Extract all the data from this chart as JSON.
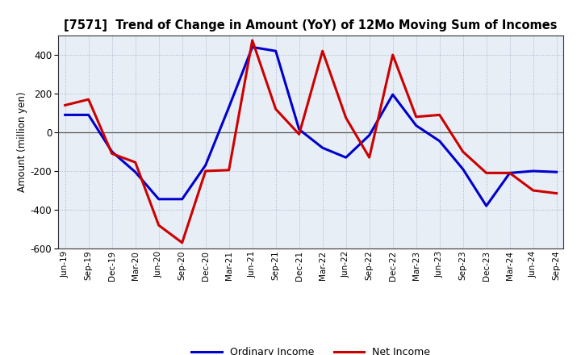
{
  "title": "[7571]  Trend of Change in Amount (YoY) of 12Mo Moving Sum of Incomes",
  "ylabel": "Amount (million yen)",
  "x_labels": [
    "Jun-19",
    "Sep-19",
    "Dec-19",
    "Mar-20",
    "Jun-20",
    "Sep-20",
    "Dec-20",
    "Mar-21",
    "Jun-21",
    "Sep-21",
    "Dec-21",
    "Mar-22",
    "Jun-22",
    "Sep-22",
    "Dec-22",
    "Mar-23",
    "Jun-23",
    "Sep-23",
    "Dec-23",
    "Mar-24",
    "Jun-24",
    "Sep-24"
  ],
  "ordinary_income": [
    90,
    90,
    -100,
    -205,
    -345,
    -345,
    -170,
    130,
    440,
    420,
    15,
    -80,
    -130,
    -15,
    195,
    35,
    -45,
    -190,
    -380,
    -210,
    -200,
    -205
  ],
  "net_income": [
    140,
    170,
    -110,
    -155,
    -480,
    -570,
    -200,
    -195,
    475,
    120,
    -10,
    420,
    75,
    -130,
    400,
    80,
    90,
    -100,
    -210,
    -210,
    -300,
    -315
  ],
  "ylim": [
    -600,
    500
  ],
  "yticks": [
    -600,
    -400,
    -200,
    0,
    200,
    400
  ],
  "ordinary_color": "#0000cc",
  "net_color": "#cc0000",
  "bg_color": "#ffffff",
  "plot_bg_color": "#e8eef5",
  "grid_color": "#8899bb",
  "legend_labels": [
    "Ordinary Income",
    "Net Income"
  ]
}
